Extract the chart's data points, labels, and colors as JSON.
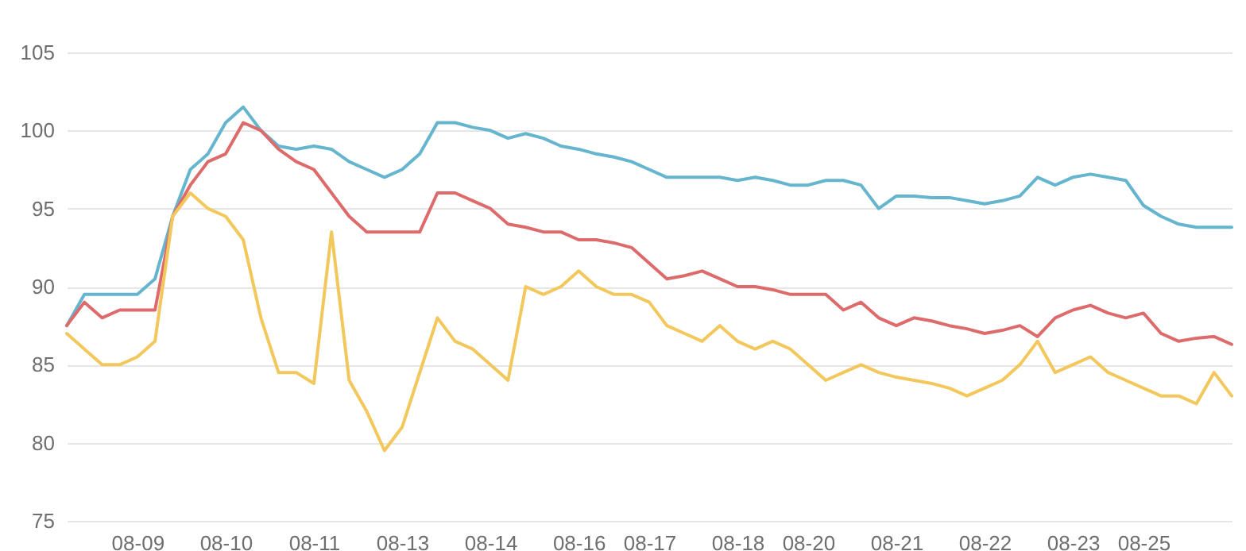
{
  "chart_data": {
    "type": "line",
    "categories": [
      null,
      null,
      null,
      null,
      "08-09",
      null,
      null,
      null,
      null,
      "08-10",
      null,
      null,
      null,
      null,
      "08-11",
      null,
      null,
      null,
      null,
      "08-13",
      null,
      null,
      null,
      null,
      "08-14",
      null,
      null,
      null,
      null,
      "08-16",
      null,
      null,
      null,
      "08-17",
      null,
      null,
      null,
      null,
      "08-18",
      null,
      null,
      null,
      "08-20",
      null,
      null,
      null,
      null,
      "08-21",
      null,
      null,
      null,
      null,
      "08-22",
      null,
      null,
      null,
      null,
      "08-23",
      null,
      null,
      null,
      "08-25",
      null,
      null,
      null,
      null,
      null
    ],
    "series": [
      {
        "color": "#64b5cd",
        "values": [
          87.5,
          89.5,
          89.5,
          89.5,
          89.5,
          90.5,
          94.5,
          97.5,
          98.5,
          100.5,
          101.5,
          100,
          99,
          98.8,
          99,
          98.8,
          98,
          97.5,
          97,
          97.5,
          98.5,
          100.5,
          100.5,
          100.2,
          100,
          99.5,
          99.8,
          99.5,
          99,
          98.8,
          98.5,
          98.3,
          98,
          97.5,
          97,
          97,
          97,
          97,
          96.8,
          97,
          96.8,
          96.5,
          96.5,
          96.8,
          96.8,
          96.5,
          95,
          95.8,
          95.8,
          95.7,
          95.7,
          95.5,
          95.3,
          95.5,
          95.8,
          97,
          96.5,
          97,
          97.2,
          97,
          96.8,
          95.2,
          94.5,
          94,
          93.8,
          93.8,
          93.8
        ]
      },
      {
        "color": "#dd6b6b",
        "values": [
          87.5,
          89,
          88,
          88.5,
          88.5,
          88.5,
          94.5,
          96.5,
          98,
          98.5,
          100.5,
          100,
          98.8,
          98,
          97.5,
          96,
          94.5,
          93.5,
          93.5,
          93.5,
          93.5,
          96,
          96,
          95.5,
          95,
          94,
          93.8,
          93.5,
          93.5,
          93,
          93,
          92.8,
          92.5,
          91.5,
          90.5,
          90.7,
          91,
          90.5,
          90,
          90,
          89.8,
          89.5,
          89.5,
          89.5,
          88.5,
          89,
          88,
          87.5,
          88,
          87.8,
          87.5,
          87.3,
          87,
          87.2,
          87.5,
          86.8,
          88,
          88.5,
          88.8,
          88.3,
          88,
          88.3,
          87,
          86.5,
          86.7,
          86.8,
          86.3
        ]
      },
      {
        "color": "#f2c75c",
        "values": [
          87,
          86,
          85,
          85,
          85.5,
          86.5,
          94.5,
          96,
          95,
          94.5,
          93,
          88,
          84.5,
          84.5,
          83.8,
          93.5,
          84,
          82,
          79.5,
          81,
          84.5,
          88,
          86.5,
          86,
          85,
          84,
          90,
          89.5,
          90,
          91,
          90,
          89.5,
          89.5,
          89,
          87.5,
          87,
          86.5,
          87.5,
          86.5,
          86,
          86.5,
          86,
          85,
          84,
          84.5,
          85,
          84.5,
          84.2,
          84,
          83.8,
          83.5,
          83,
          83.5,
          84,
          85,
          86.5,
          84.5,
          85,
          85.5,
          84.5,
          84,
          83.5,
          83,
          83,
          82.5,
          84.5,
          83
        ]
      }
    ],
    "ylim": [
      75,
      105
    ],
    "yticks": [
      75,
      80,
      85,
      90,
      95,
      100,
      105
    ],
    "grid": "y",
    "legend": false
  }
}
